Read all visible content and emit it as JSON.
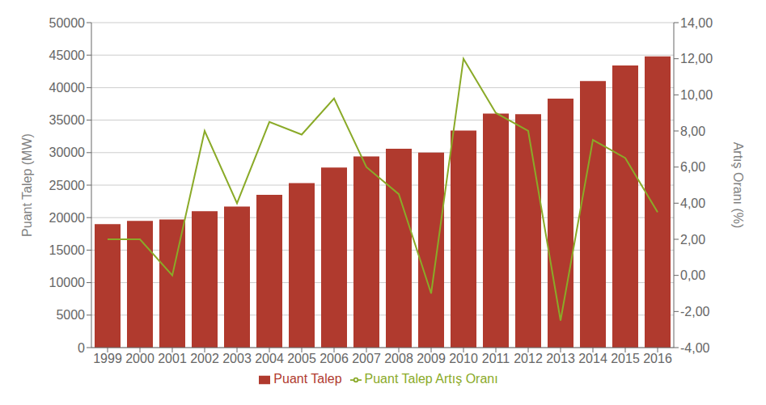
{
  "chart_data": {
    "type": "bar",
    "categories": [
      "1999",
      "2000",
      "2001",
      "2002",
      "2003",
      "2004",
      "2005",
      "2006",
      "2007",
      "2008",
      "2009",
      "2010",
      "2011",
      "2012",
      "2013",
      "2014",
      "2015",
      "2016"
    ],
    "series": [
      {
        "name": "Puant Talep",
        "type": "bar",
        "color": "#b03a2e",
        "values": [
          19000,
          19500,
          19700,
          21000,
          21700,
          23500,
          25300,
          27700,
          29400,
          30600,
          30000,
          33400,
          36000,
          35900,
          38300,
          41000,
          43400,
          44800
        ]
      },
      {
        "name": "Puant Talep Artış Oranı",
        "type": "line",
        "color": "#8aaa28",
        "axis": "y2",
        "values": [
          2.0,
          2.0,
          0.0,
          8.0,
          4.0,
          8.5,
          7.8,
          9.8,
          6.0,
          4.5,
          -1.0,
          12.0,
          9.0,
          8.0,
          -2.5,
          7.5,
          6.5,
          3.5
        ]
      }
    ],
    "ylabel": "Puant Talep (MW)",
    "y2label": "Artış Oranı (%)",
    "ylim": [
      0,
      50000
    ],
    "yticks": [
      0,
      5000,
      10000,
      15000,
      20000,
      25000,
      30000,
      35000,
      40000,
      45000,
      50000
    ],
    "y2lim": [
      -4.0,
      14.0
    ],
    "y2ticks": [
      {
        "value": -4.0,
        "label": "-4,00"
      },
      {
        "value": -2.0,
        "label": "-2,00"
      },
      {
        "value": 0.0,
        "label": "0,00"
      },
      {
        "value": 2.0,
        "label": "2,00"
      },
      {
        "value": 4.0,
        "label": "4,00"
      },
      {
        "value": 6.0,
        "label": "6,00"
      },
      {
        "value": 8.0,
        "label": "8,00"
      },
      {
        "value": 10.0,
        "label": "10,00"
      },
      {
        "value": 12.0,
        "label": "12,00"
      },
      {
        "value": 14.0,
        "label": "14,00"
      }
    ],
    "grid": true,
    "legend": "bottom"
  }
}
